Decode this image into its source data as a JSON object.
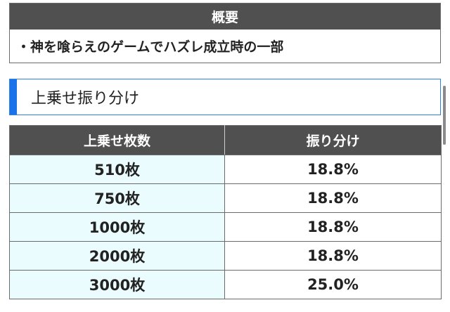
{
  "overview": {
    "heading": "概要",
    "text": "・神を喰らえのゲームでハズレ成立時の一部"
  },
  "section": {
    "title": "上乗せ振り分け",
    "accent_color": "#1a73e8"
  },
  "table": {
    "headers": [
      "上乗せ枚数",
      "振り分け"
    ],
    "rows": [
      [
        "510枚",
        "18.8%"
      ],
      [
        "750枚",
        "18.8%"
      ],
      [
        "1000枚",
        "18.8%"
      ],
      [
        "2000枚",
        "18.8%"
      ],
      [
        "3000枚",
        "25.0%"
      ]
    ]
  }
}
